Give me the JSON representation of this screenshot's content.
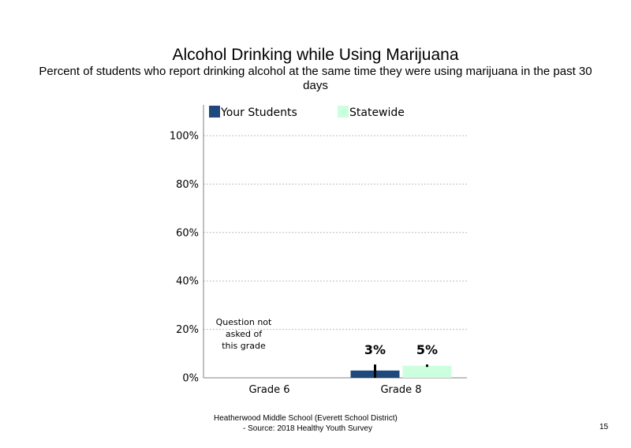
{
  "slide": {
    "footer_line1": "Heatherwood Middle School (Everett School District)",
    "footer_line2": "- Source: 2018 Healthy  Youth Survey",
    "page_number": "15"
  },
  "colors": {
    "your_students": "#1F497D",
    "statewide": "#CCFFDD",
    "grid": "#BFBFBF",
    "axis": "#808080"
  },
  "chart_data": {
    "type": "bar",
    "title": "Alcohol Drinking  while  Using Marijuana",
    "subtitle": "Percent of students who report drinking alcohol at the same time they were using marijuana in the past 30 days",
    "categories": [
      "Grade 6",
      "Grade 8"
    ],
    "series": [
      {
        "name": "Your Students",
        "values": [
          null,
          3
        ],
        "labels": [
          "",
          "3%"
        ],
        "error": [
          null,
          [
            0,
            5.5
          ]
        ]
      },
      {
        "name": "Statewide",
        "values": [
          null,
          5
        ],
        "labels": [
          "",
          "5%"
        ],
        "error": [
          null,
          [
            4.5,
            5.5
          ]
        ]
      }
    ],
    "yticks": [
      "0%",
      "20%",
      "40%",
      "60%",
      "80%",
      "100%"
    ],
    "ylim": [
      0,
      100
    ],
    "grid": true,
    "legend": "top",
    "annotation": {
      "line1": "Question not",
      "line2": "asked of",
      "line3": "this grade"
    }
  }
}
